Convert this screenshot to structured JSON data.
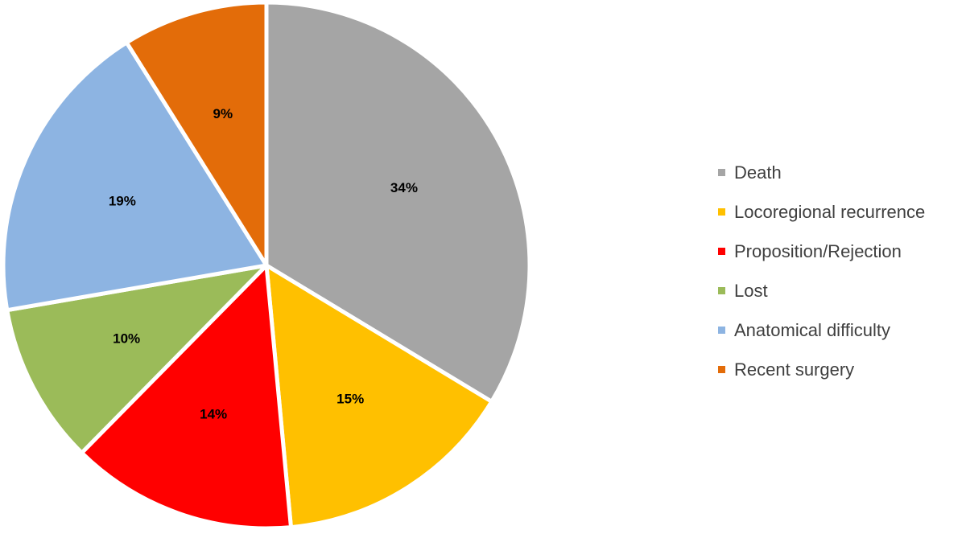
{
  "chart_data": {
    "type": "pie",
    "categories": [
      "Death",
      "Locoregional recurrence",
      "Proposition/Rejection",
      "Lost",
      "Anatomical difficulty",
      "Recent surgery"
    ],
    "values": [
      34,
      15,
      14,
      10,
      19,
      9
    ],
    "value_labels": [
      "34%",
      "15%",
      "14%",
      "10%",
      "19%",
      "9%"
    ],
    "colors": [
      "#a5a5a5",
      "#ffc000",
      "#ff0000",
      "#9bbb59",
      "#8db4e2",
      "#e36c09"
    ],
    "start_angle": "12 o'clock",
    "direction": "clockwise",
    "legend_position": "right"
  }
}
